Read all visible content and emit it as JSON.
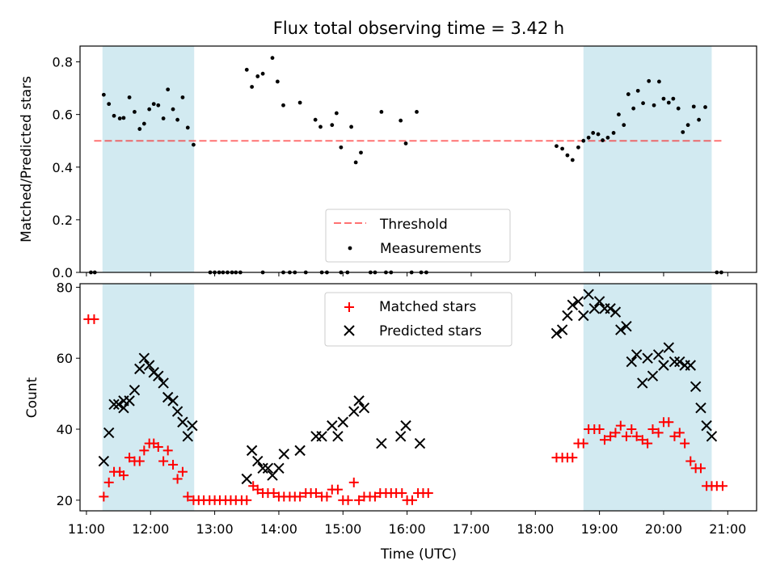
{
  "title": "Flux total observing time = 3.42 h",
  "colors": {
    "shade": "#add8e6",
    "threshold": "#ff0000",
    "measure": "#000000",
    "matched": "#ff0000",
    "predicted": "#000000"
  },
  "chart_data": [
    {
      "type": "scatter",
      "ylabel": "Matched/Predicted stars",
      "ylim": [
        0,
        0.86
      ],
      "yticks": [
        0.0,
        0.2,
        0.4,
        0.6,
        0.8
      ],
      "legend": {
        "position": "bottom-center",
        "threshold_label": "Threshold",
        "measure_label": "Measurements"
      },
      "threshold": 0.5,
      "shaded_intervals": [
        [
          11.25,
          12.68
        ],
        [
          18.75,
          20.75
        ]
      ],
      "series": [
        {
          "name": "Measurements",
          "points": [
            [
              11.07,
              0.0
            ],
            [
              11.13,
              0.0
            ],
            [
              11.27,
              0.675
            ],
            [
              11.35,
              0.64
            ],
            [
              11.43,
              0.595
            ],
            [
              11.52,
              0.585
            ],
            [
              11.58,
              0.587
            ],
            [
              11.67,
              0.665
            ],
            [
              11.75,
              0.61
            ],
            [
              11.83,
              0.545
            ],
            [
              11.9,
              0.565
            ],
            [
              11.98,
              0.62
            ],
            [
              12.05,
              0.64
            ],
            [
              12.12,
              0.635
            ],
            [
              12.2,
              0.585
            ],
            [
              12.27,
              0.695
            ],
            [
              12.35,
              0.62
            ],
            [
              12.42,
              0.58
            ],
            [
              12.5,
              0.665
            ],
            [
              12.58,
              0.55
            ],
            [
              12.67,
              0.485
            ],
            [
              12.93,
              0.0
            ],
            [
              13.0,
              0.0
            ],
            [
              13.07,
              0.0
            ],
            [
              13.13,
              0.0
            ],
            [
              13.2,
              0.0
            ],
            [
              13.27,
              0.0
            ],
            [
              13.33,
              0.0
            ],
            [
              13.4,
              0.0
            ],
            [
              13.5,
              0.77
            ],
            [
              13.58,
              0.705
            ],
            [
              13.67,
              0.745
            ],
            [
              13.75,
              0.755
            ],
            [
              13.75,
              0.0
            ],
            [
              13.9,
              0.815
            ],
            [
              13.98,
              0.725
            ],
            [
              14.07,
              0.635
            ],
            [
              14.07,
              0.0
            ],
            [
              14.17,
              0.0
            ],
            [
              14.25,
              0.0
            ],
            [
              14.33,
              0.645
            ],
            [
              14.42,
              0.0
            ],
            [
              14.57,
              0.58
            ],
            [
              14.65,
              0.553
            ],
            [
              14.67,
              0.0
            ],
            [
              14.75,
              0.0
            ],
            [
              14.83,
              0.56
            ],
            [
              14.9,
              0.605
            ],
            [
              14.97,
              0.475
            ],
            [
              14.97,
              0.0
            ],
            [
              15.07,
              0.0
            ],
            [
              15.13,
              0.553
            ],
            [
              15.2,
              0.418
            ],
            [
              15.28,
              0.455
            ],
            [
              15.43,
              0.0
            ],
            [
              15.5,
              0.0
            ],
            [
              15.6,
              0.61
            ],
            [
              15.67,
              0.0
            ],
            [
              15.75,
              0.0
            ],
            [
              15.9,
              0.577
            ],
            [
              15.98,
              0.49
            ],
            [
              16.07,
              0.0
            ],
            [
              16.15,
              0.61
            ],
            [
              16.22,
              0.0
            ],
            [
              16.3,
              0.0
            ],
            [
              18.33,
              0.48
            ],
            [
              18.42,
              0.47
            ],
            [
              18.5,
              0.445
            ],
            [
              18.58,
              0.427
            ],
            [
              18.67,
              0.475
            ],
            [
              18.75,
              0.5
            ],
            [
              18.83,
              0.512
            ],
            [
              18.9,
              0.53
            ],
            [
              18.98,
              0.525
            ],
            [
              19.05,
              0.502
            ],
            [
              19.13,
              0.512
            ],
            [
              19.22,
              0.53
            ],
            [
              19.3,
              0.6
            ],
            [
              19.38,
              0.56
            ],
            [
              19.45,
              0.677
            ],
            [
              19.53,
              0.623
            ],
            [
              19.6,
              0.69
            ],
            [
              19.68,
              0.643
            ],
            [
              19.77,
              0.727
            ],
            [
              19.85,
              0.635
            ],
            [
              19.93,
              0.725
            ],
            [
              20.0,
              0.66
            ],
            [
              20.08,
              0.645
            ],
            [
              20.15,
              0.66
            ],
            [
              20.23,
              0.623
            ],
            [
              20.3,
              0.533
            ],
            [
              20.38,
              0.56
            ],
            [
              20.47,
              0.63
            ],
            [
              20.55,
              0.58
            ],
            [
              20.65,
              0.628
            ],
            [
              20.83,
              0.0
            ],
            [
              20.9,
              0.0
            ]
          ]
        }
      ]
    },
    {
      "type": "scatter",
      "xlabel": "Time (UTC)",
      "ylabel": "Count",
      "ylim": [
        17,
        81
      ],
      "yticks": [
        20,
        40,
        60,
        80
      ],
      "xlim": [
        10.9,
        21.45
      ],
      "xticks": [
        "11:00",
        "12:00",
        "13:00",
        "14:00",
        "15:00",
        "16:00",
        "17:00",
        "18:00",
        "19:00",
        "20:00",
        "21:00"
      ],
      "legend": {
        "position": "top-center",
        "matched_label": "Matched stars",
        "predicted_label": "Predicted stars"
      },
      "shaded_intervals": [
        [
          11.25,
          12.68
        ],
        [
          18.75,
          20.75
        ]
      ],
      "series": [
        {
          "name": "Matched stars",
          "points": [
            [
              11.03,
              71
            ],
            [
              11.12,
              71
            ],
            [
              11.27,
              21
            ],
            [
              11.35,
              25
            ],
            [
              11.43,
              28
            ],
            [
              11.52,
              28
            ],
            [
              11.58,
              27
            ],
            [
              11.67,
              32
            ],
            [
              11.75,
              31
            ],
            [
              11.83,
              31
            ],
            [
              11.9,
              34
            ],
            [
              11.98,
              36
            ],
            [
              12.05,
              36
            ],
            [
              12.12,
              35
            ],
            [
              12.2,
              31
            ],
            [
              12.27,
              34
            ],
            [
              12.35,
              30
            ],
            [
              12.42,
              26
            ],
            [
              12.5,
              28
            ],
            [
              12.58,
              21
            ],
            [
              12.67,
              20
            ],
            [
              12.75,
              20
            ],
            [
              12.83,
              20
            ],
            [
              12.92,
              20
            ],
            [
              13.0,
              20
            ],
            [
              13.08,
              20
            ],
            [
              13.17,
              20
            ],
            [
              13.25,
              20
            ],
            [
              13.33,
              20
            ],
            [
              13.42,
              20
            ],
            [
              13.5,
              20
            ],
            [
              13.6,
              24
            ],
            [
              13.67,
              23
            ],
            [
              13.75,
              22
            ],
            [
              13.83,
              22
            ],
            [
              13.92,
              22
            ],
            [
              14.0,
              21
            ],
            [
              14.08,
              21
            ],
            [
              14.17,
              21
            ],
            [
              14.25,
              21
            ],
            [
              14.33,
              21
            ],
            [
              14.42,
              22
            ],
            [
              14.5,
              22
            ],
            [
              14.58,
              22
            ],
            [
              14.67,
              21
            ],
            [
              14.75,
              21
            ],
            [
              14.83,
              23
            ],
            [
              14.92,
              23
            ],
            [
              15.0,
              20
            ],
            [
              15.08,
              20
            ],
            [
              15.17,
              25
            ],
            [
              15.25,
              20
            ],
            [
              15.33,
              21
            ],
            [
              15.42,
              21
            ],
            [
              15.5,
              21
            ],
            [
              15.58,
              22
            ],
            [
              15.67,
              22
            ],
            [
              15.75,
              22
            ],
            [
              15.83,
              22
            ],
            [
              15.92,
              22
            ],
            [
              16.0,
              20
            ],
            [
              16.08,
              20
            ],
            [
              16.17,
              22
            ],
            [
              16.25,
              22
            ],
            [
              16.33,
              22
            ],
            [
              18.33,
              32
            ],
            [
              18.42,
              32
            ],
            [
              18.5,
              32
            ],
            [
              18.58,
              32
            ],
            [
              18.67,
              36
            ],
            [
              18.75,
              36
            ],
            [
              18.83,
              40
            ],
            [
              18.92,
              40
            ],
            [
              19.0,
              40
            ],
            [
              19.08,
              37
            ],
            [
              19.17,
              38
            ],
            [
              19.25,
              39
            ],
            [
              19.33,
              41
            ],
            [
              19.42,
              38
            ],
            [
              19.5,
              40
            ],
            [
              19.58,
              38
            ],
            [
              19.67,
              37
            ],
            [
              19.75,
              36
            ],
            [
              19.83,
              40
            ],
            [
              19.92,
              39
            ],
            [
              20.0,
              42
            ],
            [
              20.08,
              42
            ],
            [
              20.17,
              38
            ],
            [
              20.25,
              39
            ],
            [
              20.33,
              36
            ],
            [
              20.42,
              31
            ],
            [
              20.5,
              29
            ],
            [
              20.58,
              29
            ],
            [
              20.67,
              24
            ],
            [
              20.75,
              24
            ],
            [
              20.83,
              24
            ],
            [
              20.92,
              24
            ]
          ]
        },
        {
          "name": "Predicted stars",
          "points": [
            [
              11.27,
              31
            ],
            [
              11.35,
              39
            ],
            [
              11.43,
              47
            ],
            [
              11.5,
              47
            ],
            [
              11.58,
              48
            ],
            [
              11.58,
              46
            ],
            [
              11.67,
              48
            ],
            [
              11.75,
              51
            ],
            [
              11.83,
              57
            ],
            [
              11.9,
              60
            ],
            [
              11.98,
              58
            ],
            [
              12.05,
              56
            ],
            [
              12.12,
              55
            ],
            [
              12.2,
              53
            ],
            [
              12.27,
              49
            ],
            [
              12.35,
              48
            ],
            [
              12.42,
              45
            ],
            [
              12.5,
              42
            ],
            [
              12.58,
              38
            ],
            [
              12.65,
              41
            ],
            [
              13.5,
              26
            ],
            [
              13.58,
              34
            ],
            [
              13.67,
              31
            ],
            [
              13.75,
              29
            ],
            [
              13.83,
              29
            ],
            [
              13.9,
              27
            ],
            [
              14.0,
              29
            ],
            [
              14.08,
              33
            ],
            [
              14.33,
              34
            ],
            [
              14.58,
              38
            ],
            [
              14.67,
              38
            ],
            [
              14.83,
              41
            ],
            [
              14.92,
              38
            ],
            [
              15.0,
              42
            ],
            [
              15.17,
              45
            ],
            [
              15.25,
              48
            ],
            [
              15.33,
              46
            ],
            [
              15.6,
              36
            ],
            [
              15.9,
              38
            ],
            [
              15.98,
              41
            ],
            [
              16.2,
              36
            ],
            [
              18.33,
              67
            ],
            [
              18.42,
              68
            ],
            [
              18.5,
              72
            ],
            [
              18.58,
              75
            ],
            [
              18.67,
              76
            ],
            [
              18.75,
              72
            ],
            [
              18.83,
              78
            ],
            [
              18.92,
              74
            ],
            [
              19.0,
              76
            ],
            [
              19.08,
              74
            ],
            [
              19.17,
              74
            ],
            [
              19.25,
              73
            ],
            [
              19.33,
              68
            ],
            [
              19.42,
              69
            ],
            [
              19.5,
              59
            ],
            [
              19.58,
              61
            ],
            [
              19.67,
              53
            ],
            [
              19.75,
              60
            ],
            [
              19.83,
              55
            ],
            [
              19.92,
              61
            ],
            [
              20.0,
              58
            ],
            [
              20.08,
              63
            ],
            [
              20.17,
              59
            ],
            [
              20.25,
              59
            ],
            [
              20.33,
              58
            ],
            [
              20.42,
              58
            ],
            [
              20.5,
              52
            ],
            [
              20.58,
              46
            ],
            [
              20.67,
              41
            ],
            [
              20.75,
              38
            ]
          ]
        }
      ]
    }
  ]
}
